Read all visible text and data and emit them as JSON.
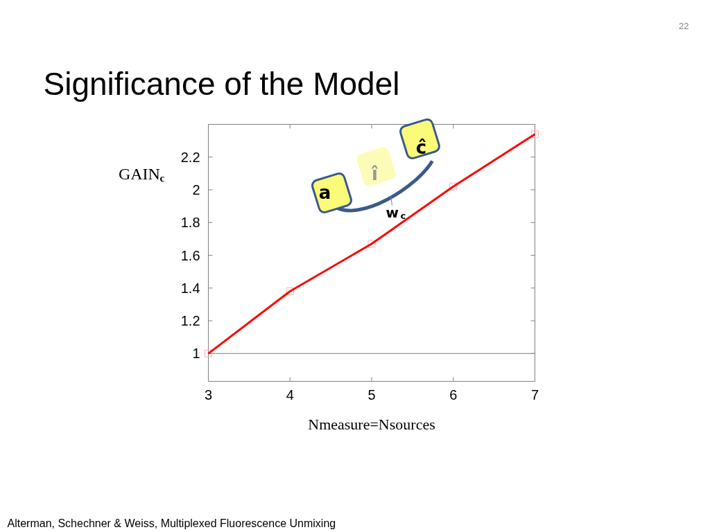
{
  "chart_data": {
    "type": "line",
    "title": "Significance of the Model",
    "xlabel": "Nmeasure=Nsources",
    "ylabel": "GAIN$_{c}$",
    "annotations": [
      "22",
      "Alterman, Schechner & Weiss, Multiplexed Fluorescence Unmixing",
      "a",
      "î",
      "ĉ",
      "w$_{c}$"
    ],
    "x": [
      3,
      4,
      5,
      6,
      7
    ],
    "series": [
      {
        "color": "#ff0000",
        "values": [
          1.0,
          1.38,
          1.67,
          2.02,
          2.34
        ]
      }
    ],
    "marker": "square",
    "line_style": "solid",
    "xlim": [
      3,
      7
    ],
    "xticks": [
      3,
      4,
      5,
      6,
      7
    ],
    "ylim": [
      0.83,
      2.4
    ],
    "yticks": [
      1,
      1.2,
      1.4,
      1.6,
      1.8,
      2,
      2.2
    ],
    "ref_lines": [
      {
        "axis": "y",
        "value": 1,
        "color": "#808080"
      }
    ],
    "grid": false
  }
}
